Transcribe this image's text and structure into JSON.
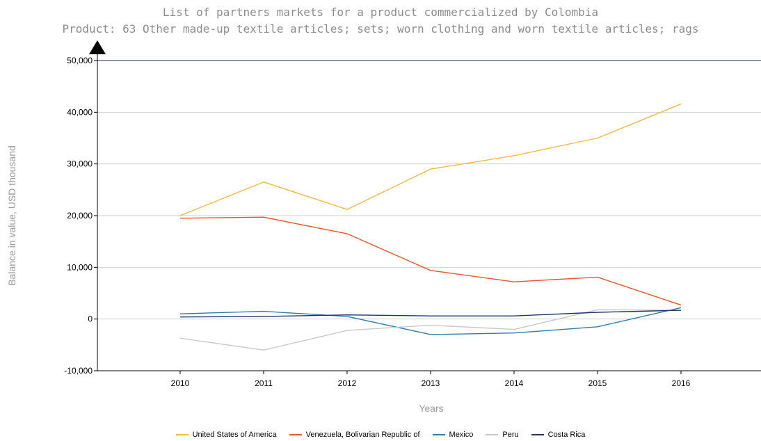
{
  "chart_data": {
    "type": "line",
    "title": "List of partners markets for a product commercialized by Colombia",
    "subtitle": "Product: 63 Other made-up textile articles; sets; worn clothing and worn textile articles; rags",
    "xlabel": "Years",
    "ylabel": "Balance in value, USD thousand",
    "x": [
      2010,
      2011,
      2012,
      2013,
      2014,
      2015,
      2016
    ],
    "y_ticks": [
      "50,000",
      "40,000",
      "30,000",
      "20,000",
      "10,000",
      "0",
      "-10,000"
    ],
    "ylim": [
      -10000,
      50000
    ],
    "grid": true,
    "legend_position": "bottom",
    "series": [
      {
        "name": "United States of America",
        "color": "#f5b942",
        "values": [
          20000,
          26500,
          21200,
          29000,
          31600,
          35000,
          41600
        ]
      },
      {
        "name": "Venezuela, Bolivarian Republic of",
        "color": "#e5562a",
        "values": [
          19500,
          19700,
          16500,
          9400,
          7200,
          8100,
          2700
        ]
      },
      {
        "name": "Mexico",
        "color": "#2e7ca8",
        "values": [
          1000,
          1500,
          500,
          -3000,
          -2700,
          -1500,
          2200
        ]
      },
      {
        "name": "Peru",
        "color": "#c8c8c8",
        "values": [
          -3700,
          -6000,
          -2200,
          -1200,
          -2000,
          1800,
          1700
        ]
      },
      {
        "name": "Costa Rica",
        "color": "#1f3864",
        "values": [
          400,
          500,
          800,
          600,
          600,
          1300,
          1700
        ]
      }
    ]
  }
}
